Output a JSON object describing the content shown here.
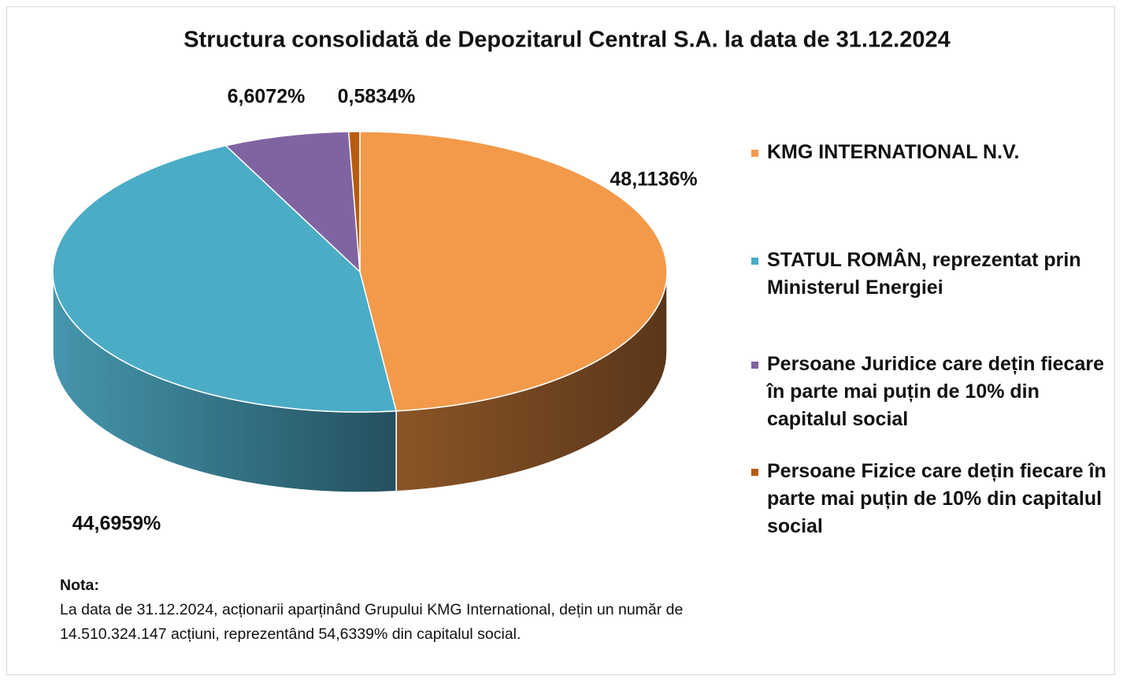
{
  "chart_data": {
    "type": "pie3d",
    "title": "Structura consolidată de Depozitarul Central S.A. la data de 31.12.2024",
    "categories": [
      "KMG INTERNATIONAL N.V.",
      "STATUL ROMÂN, reprezentat prin Ministerul Energiei",
      "Persoane Juridice care dețin fiecare în parte mai puțin de 10% din capitalul social",
      "Persoane Fizice care dețin fiecare în parte mai puțin de 10% din capitalul social"
    ],
    "values": [
      48.1136,
      44.6959,
      6.6072,
      0.5834
    ],
    "value_labels": [
      "48,1136%",
      "44,6959%",
      "6,6072%",
      "0,5834%"
    ],
    "colors": [
      "#f39a4a",
      "#4bacc6",
      "#8064a2",
      "#b85c10"
    ],
    "legend": "right"
  },
  "note": {
    "title": "Nota:",
    "lines": [
      "La data de 31.12.2024, acționarii aparținând Grupului KMG International, dețin un număr de",
      "14.510.324.147 acțiuni, reprezentând 54,6339% din capitalul social."
    ]
  }
}
